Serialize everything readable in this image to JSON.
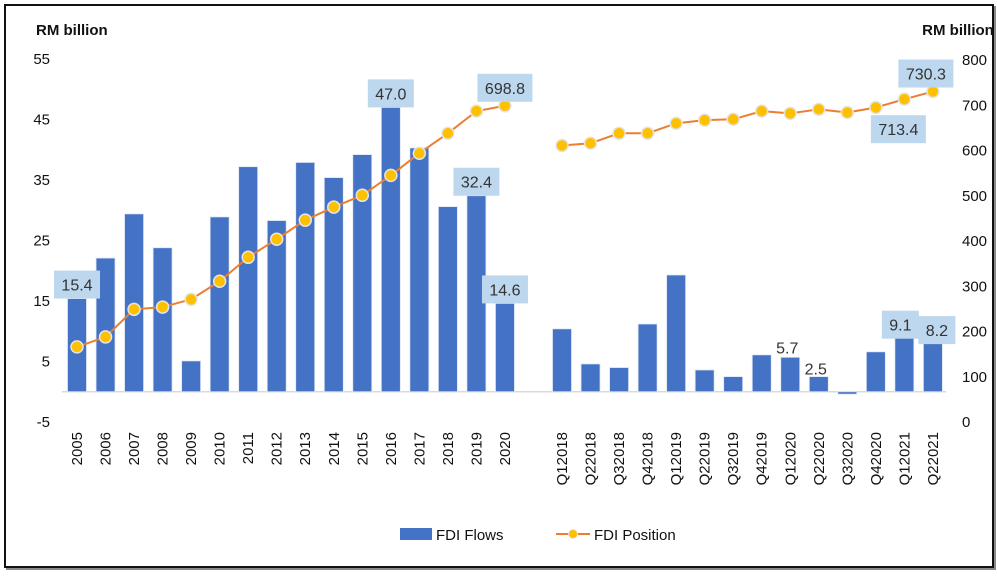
{
  "chart_data": {
    "type": "bar+line",
    "left_axis": {
      "title": "RM billion",
      "ticks": [
        "55",
        "45",
        "35",
        "25",
        "15",
        "5",
        "-5"
      ],
      "ylim": [
        -5,
        55
      ]
    },
    "right_axis": {
      "title": "RM billion",
      "ticks": [
        "800",
        "700",
        "600",
        "500",
        "400",
        "300",
        "200",
        "100",
        "0"
      ],
      "ylim": [
        0,
        800
      ]
    },
    "categories": [
      "2005",
      "2006",
      "2007",
      "2008",
      "2009",
      "2010",
      "2011",
      "2012",
      "2013",
      "2014",
      "2015",
      "2016",
      "2017",
      "2018",
      "2019",
      "2020",
      "",
      "Q12018",
      "Q22018",
      "Q32018",
      "Q42018",
      "Q12019",
      "Q22019",
      "Q32019",
      "Q42019",
      "Q12020",
      "Q22020",
      "Q32020",
      "Q42020",
      "Q12021",
      "Q22021"
    ],
    "series": [
      {
        "name": "FDI Flows",
        "type": "bar",
        "axis": "left",
        "color": "#4472C4",
        "values": [
          15.4,
          22.1,
          29.4,
          23.8,
          5.1,
          28.9,
          37.2,
          28.3,
          37.9,
          35.4,
          39.2,
          47.0,
          40.3,
          30.6,
          32.4,
          14.6,
          null,
          10.4,
          4.6,
          4.0,
          11.2,
          19.3,
          3.6,
          2.5,
          6.1,
          5.7,
          2.5,
          -0.4,
          6.6,
          9.1,
          8.2
        ]
      },
      {
        "name": "FDI Position",
        "type": "line",
        "axis": "right",
        "color": "#ED7D31",
        "marker_color": "#FFC000",
        "values": [
          166,
          188,
          249,
          254,
          271,
          311,
          364,
          404,
          446,
          475,
          501,
          545,
          594,
          638,
          687,
          698.8,
          null,
          611,
          616,
          638,
          638,
          660,
          667,
          669,
          687,
          682,
          691,
          684,
          695,
          713.4,
          730.3
        ]
      }
    ],
    "data_labels": [
      {
        "series": "FDI Flows",
        "category": "2005",
        "text": "15.4",
        "boxed": true
      },
      {
        "series": "FDI Flows",
        "category": "2016",
        "text": "47.0",
        "boxed": true
      },
      {
        "series": "FDI Flows",
        "category": "2019",
        "text": "32.4",
        "boxed": true
      },
      {
        "series": "FDI Flows",
        "category": "2020",
        "text": "14.6",
        "boxed": true
      },
      {
        "series": "FDI Position",
        "category": "2020",
        "text": "698.8",
        "boxed": true
      },
      {
        "series": "FDI Flows",
        "category": "Q12020",
        "text": "5.7",
        "boxed": false
      },
      {
        "series": "FDI Flows",
        "category": "Q22020",
        "text": "2.5",
        "boxed": false
      },
      {
        "series": "FDI Flows",
        "category": "Q12021",
        "text": "9.1",
        "boxed": true
      },
      {
        "series": "FDI Flows",
        "category": "Q22021",
        "text": "8.2",
        "boxed": true
      },
      {
        "series": "FDI Position",
        "category": "Q12021",
        "text": "713.4",
        "boxed": true
      },
      {
        "series": "FDI Position",
        "category": "Q22021",
        "text": "730.3",
        "boxed": true
      }
    ],
    "legend": {
      "position": "bottom",
      "items": [
        "FDI Flows",
        "FDI Position"
      ]
    },
    "grid": false,
    "label_box_color": "#BDD7EE"
  }
}
